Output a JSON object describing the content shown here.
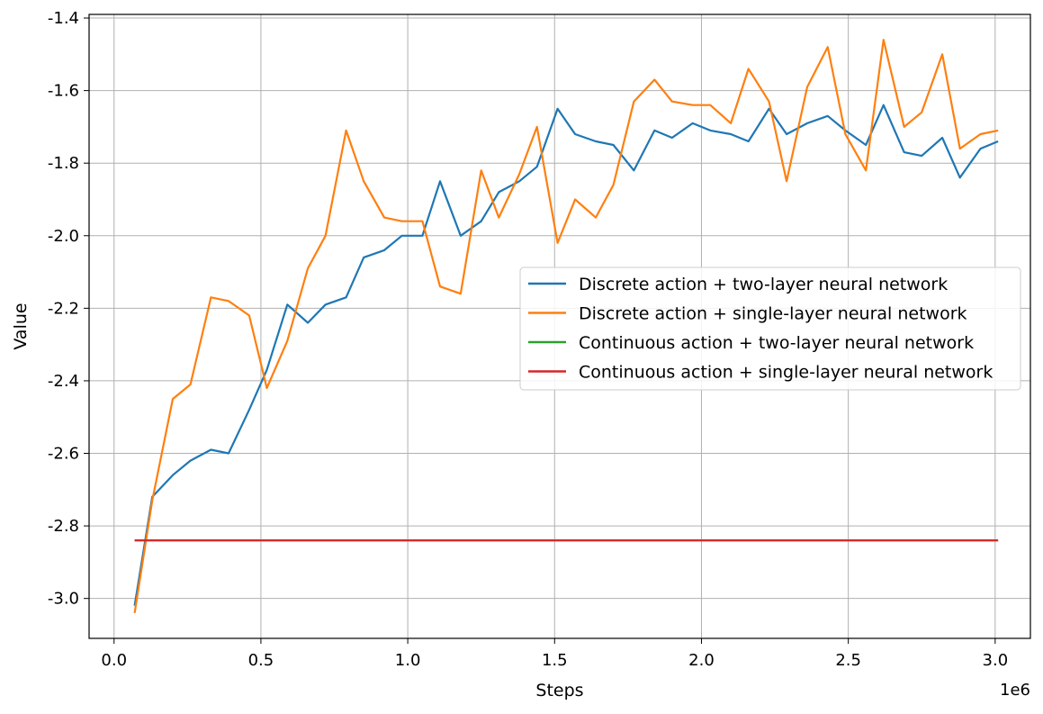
{
  "chart_data": {
    "type": "line",
    "title": "",
    "xlabel": "Steps",
    "ylabel": "Value",
    "x_offset_label": "1e6",
    "xlim": [
      -0.085,
      3.12
    ],
    "ylim": [
      -3.11,
      -1.39
    ],
    "xticks": [
      0.0,
      0.5,
      1.0,
      1.5,
      2.0,
      2.5,
      3.0
    ],
    "xtick_labels": [
      "0.0",
      "0.5",
      "1.0",
      "1.5",
      "2.0",
      "2.5",
      "3.0"
    ],
    "yticks": [
      -3.0,
      -2.8,
      -2.6,
      -2.4,
      -2.2,
      -2.0,
      -1.8,
      -1.6,
      -1.4
    ],
    "ytick_labels": [
      "-3.0",
      "-2.8",
      "-2.6",
      "-2.4",
      "-2.2",
      "-2.0",
      "-1.8",
      "-1.6",
      "-1.4"
    ],
    "grid": true,
    "legend_position": "center-right",
    "x": [
      0.07,
      0.13,
      0.2,
      0.26,
      0.33,
      0.39,
      0.46,
      0.52,
      0.59,
      0.66,
      0.72,
      0.79,
      0.85,
      0.92,
      0.98,
      1.05,
      1.11,
      1.18,
      1.25,
      1.31,
      1.38,
      1.44,
      1.51,
      1.57,
      1.64,
      1.7,
      1.77,
      1.84,
      1.9,
      1.97,
      2.03,
      2.1,
      2.16,
      2.23,
      2.29,
      2.36,
      2.43,
      2.49,
      2.56,
      2.62,
      2.69,
      2.75,
      2.82,
      2.88,
      2.95,
      3.01
    ],
    "series": [
      {
        "name": "Discrete action + two-layer neural network",
        "color": "#1f77b4",
        "values": [
          -3.02,
          -2.72,
          -2.66,
          -2.62,
          -2.59,
          -2.6,
          -2.48,
          -2.37,
          -2.19,
          -2.24,
          -2.19,
          -2.17,
          -2.06,
          -2.04,
          -2.0,
          -2.0,
          -1.85,
          -2.0,
          -1.96,
          -1.88,
          -1.85,
          -1.81,
          -1.65,
          -1.72,
          -1.74,
          -1.75,
          -1.82,
          -1.71,
          -1.73,
          -1.69,
          -1.71,
          -1.72,
          -1.74,
          -1.65,
          -1.72,
          -1.69,
          -1.67,
          -1.71,
          -1.75,
          -1.64,
          -1.77,
          -1.78,
          -1.73,
          -1.84,
          -1.76,
          -1.74
        ]
      },
      {
        "name": "Discrete action + single-layer neural network",
        "color": "#ff7f0e",
        "values": [
          -3.04,
          -2.73,
          -2.45,
          -2.41,
          -2.17,
          -2.18,
          -2.22,
          -2.42,
          -2.29,
          -2.09,
          -2.0,
          -1.71,
          -1.85,
          -1.95,
          -1.96,
          -1.96,
          -2.14,
          -2.16,
          -1.82,
          -1.95,
          -1.83,
          -1.7,
          -2.02,
          -1.9,
          -1.95,
          -1.86,
          -1.63,
          -1.57,
          -1.63,
          -1.64,
          -1.64,
          -1.69,
          -1.54,
          -1.63,
          -1.85,
          -1.59,
          -1.48,
          -1.72,
          -1.82,
          -1.46,
          -1.7,
          -1.66,
          -1.5,
          -1.76,
          -1.72,
          -1.71
        ]
      },
      {
        "name": "Continuous action + two-layer neural network",
        "color": "#2ca02c",
        "values": [
          -2.84,
          -2.84,
          -2.84,
          -2.84,
          -2.84,
          -2.84,
          -2.84,
          -2.84,
          -2.84,
          -2.84,
          -2.84,
          -2.84,
          -2.84,
          -2.84,
          -2.84,
          -2.84,
          -2.84,
          -2.84,
          -2.84,
          -2.84,
          -2.84,
          -2.84,
          -2.84,
          -2.84,
          -2.84,
          -2.84,
          -2.84,
          -2.84,
          -2.84,
          -2.84,
          -2.84,
          -2.84,
          -2.84,
          -2.84,
          -2.84,
          -2.84,
          -2.84,
          -2.84,
          -2.84,
          -2.84,
          -2.84,
          -2.84,
          -2.84,
          -2.84,
          -2.84,
          -2.84
        ]
      },
      {
        "name": "Continuous action + single-layer neural network",
        "color": "#d62728",
        "values": [
          -2.84,
          -2.84,
          -2.84,
          -2.84,
          -2.84,
          -2.84,
          -2.84,
          -2.84,
          -2.84,
          -2.84,
          -2.84,
          -2.84,
          -2.84,
          -2.84,
          -2.84,
          -2.84,
          -2.84,
          -2.84,
          -2.84,
          -2.84,
          -2.84,
          -2.84,
          -2.84,
          -2.84,
          -2.84,
          -2.84,
          -2.84,
          -2.84,
          -2.84,
          -2.84,
          -2.84,
          -2.84,
          -2.84,
          -2.84,
          -2.84,
          -2.84,
          -2.84,
          -2.84,
          -2.84,
          -2.84,
          -2.84,
          -2.84,
          -2.84,
          -2.84,
          -2.84,
          -2.84
        ]
      }
    ]
  }
}
